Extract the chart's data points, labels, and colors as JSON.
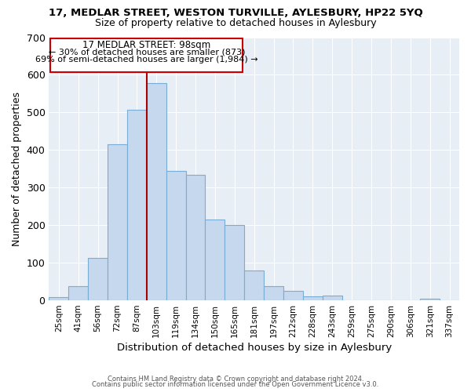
{
  "title": "17, MEDLAR STREET, WESTON TURVILLE, AYLESBURY, HP22 5YQ",
  "subtitle": "Size of property relative to detached houses in Aylesbury",
  "xlabel": "Distribution of detached houses by size in Aylesbury",
  "ylabel": "Number of detached properties",
  "bar_labels": [
    "25sqm",
    "41sqm",
    "56sqm",
    "72sqm",
    "87sqm",
    "103sqm",
    "119sqm",
    "134sqm",
    "150sqm",
    "165sqm",
    "181sqm",
    "197sqm",
    "212sqm",
    "228sqm",
    "243sqm",
    "259sqm",
    "275sqm",
    "290sqm",
    "306sqm",
    "321sqm",
    "337sqm"
  ],
  "bar_values": [
    8,
    37,
    112,
    415,
    507,
    577,
    345,
    333,
    214,
    200,
    80,
    37,
    26,
    11,
    13,
    0,
    0,
    0,
    0,
    5,
    0
  ],
  "bar_color": "#c5d8ed",
  "bar_edge_color": "#7aadd4",
  "vline_color": "#aa0000",
  "ylim": [
    0,
    700
  ],
  "yticks": [
    0,
    100,
    200,
    300,
    400,
    500,
    600,
    700
  ],
  "annotation_title": "17 MEDLAR STREET: 98sqm",
  "annotation_line1": "← 30% of detached houses are smaller (873)",
  "annotation_line2": "69% of semi-detached houses are larger (1,984) →",
  "footer1": "Contains HM Land Registry data © Crown copyright and database right 2024.",
  "footer2": "Contains public sector information licensed under the Open Government Licence v3.0.",
  "plot_bg_color": "#e8eef5",
  "fig_bg_color": "#ffffff",
  "grid_color": "#ffffff",
  "vline_x": 5.0
}
